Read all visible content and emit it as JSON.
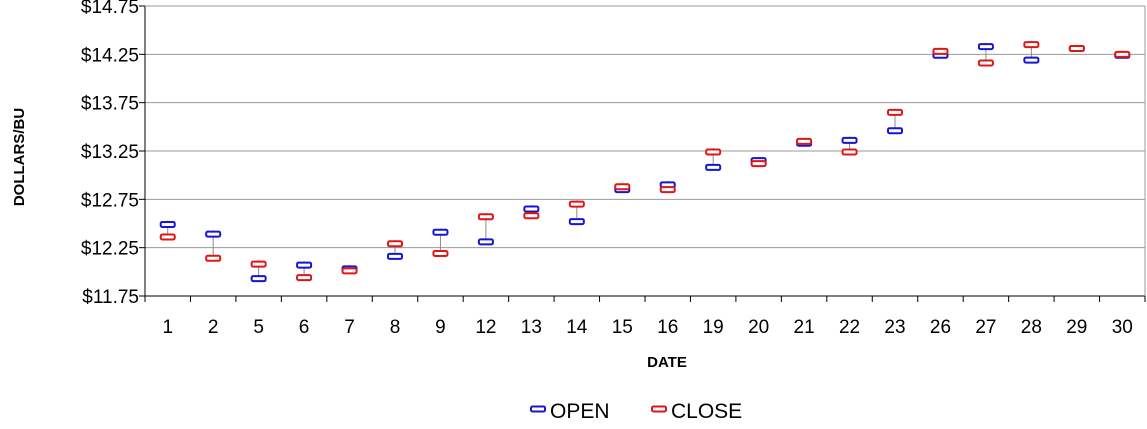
{
  "chart_data": {
    "type": "stock-open-close",
    "xlabel": "DATE",
    "ylabel": "DOLLARS/BU",
    "ylim": [
      11.75,
      14.75
    ],
    "yticks": [
      "$11.75",
      "$12.25",
      "$12.75",
      "$13.25",
      "$13.75",
      "$14.25",
      "$14.75"
    ],
    "categories": [
      "1",
      "2",
      "5",
      "6",
      "7",
      "8",
      "9",
      "12",
      "13",
      "14",
      "15",
      "16",
      "19",
      "20",
      "21",
      "22",
      "23",
      "26",
      "27",
      "28",
      "29",
      "30"
    ],
    "grid": "horizontal",
    "legend_position": "bottom",
    "series": [
      {
        "name": "OPEN",
        "color": "#1515d8",
        "values": [
          12.49,
          12.39,
          11.93,
          12.07,
          12.03,
          12.16,
          12.41,
          12.31,
          12.65,
          12.52,
          12.85,
          12.9,
          13.08,
          13.15,
          13.33,
          13.36,
          13.46,
          14.24,
          14.33,
          14.19,
          14.31,
          14.24
        ]
      },
      {
        "name": "CLOSE",
        "color": "#e01515",
        "values": [
          12.36,
          12.14,
          12.08,
          11.94,
          12.01,
          12.29,
          12.19,
          12.57,
          12.58,
          12.7,
          12.88,
          12.85,
          13.24,
          13.12,
          13.35,
          13.24,
          13.65,
          14.28,
          14.16,
          14.35,
          14.31,
          14.25
        ]
      }
    ]
  }
}
